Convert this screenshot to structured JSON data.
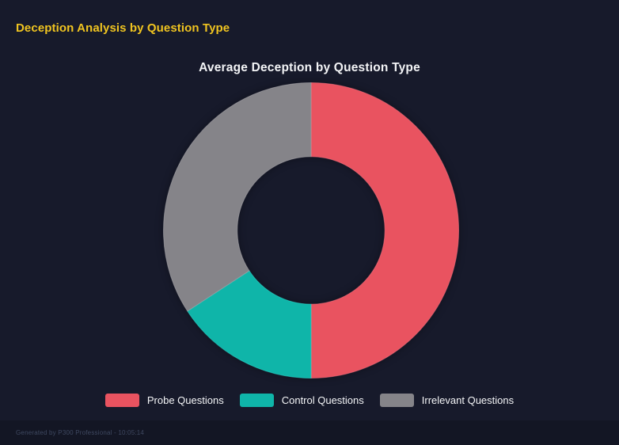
{
  "page": {
    "title": "Deception Analysis by Question Type",
    "title_color": "#F0C420",
    "background_color": "#171A2B"
  },
  "chart": {
    "title": "Average Deception by Question Type",
    "title_color": "#F3F4F6"
  },
  "chart_data": {
    "type": "pie",
    "variant": "doughnut",
    "title": "Average Deception by Question Type",
    "categories": [
      "Probe Questions",
      "Control Questions",
      "Irrelevant Questions"
    ],
    "values": [
      50,
      15.8,
      34.2
    ],
    "colors": [
      "#E95360",
      "#0FB5A9",
      "#858489"
    ],
    "edge_colors": [
      "#FA7280",
      "#2BDCCE",
      "#A6A5AA"
    ],
    "start_angle_deg": 0,
    "direction": "clockwise",
    "cutout_percent": 50,
    "legend_position": "bottom"
  },
  "legend": {
    "items": [
      {
        "label": "Probe Questions",
        "color": "#E95360"
      },
      {
        "label": "Control Questions",
        "color": "#0FB5A9"
      },
      {
        "label": "Irrelevant Questions",
        "color": "#858489"
      }
    ]
  },
  "footer": {
    "text": "Generated by P300 Professional - 10:05:14",
    "text_color": "#3E4860",
    "bar_color": "#131624"
  }
}
